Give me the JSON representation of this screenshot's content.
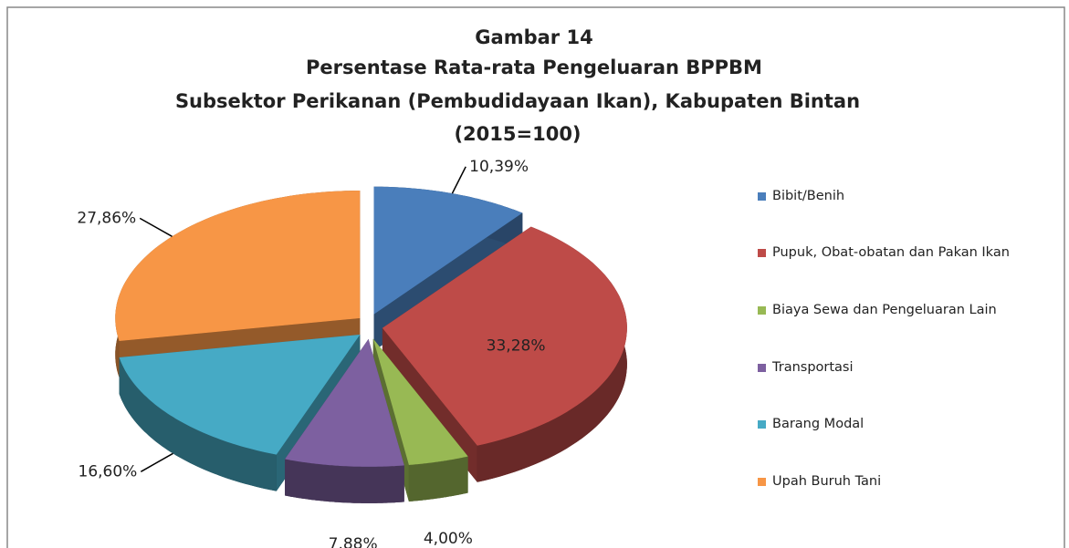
{
  "chart_data": {
    "type": "pie",
    "title": [
      "Gambar 14",
      "Persentase Rata-rata Pengeluaran BPPBM",
      "Subsektor Perikanan (Pembudidayaan Ikan), Kabupaten Bintan",
      "(2015=100)"
    ],
    "categories": [
      "Bibit/Benih",
      "Pupuk, Obat-obatan dan Pakan Ikan",
      "Biaya Sewa dan Pengeluaran Lain",
      "Transportasi",
      "Barang Modal",
      "Upah Buruh Tani"
    ],
    "values": [
      10.39,
      33.28,
      4.0,
      7.88,
      16.6,
      27.86
    ],
    "value_labels": [
      "10,39%",
      "33,28%",
      "4,00%",
      "7,88%",
      "16,60%",
      "27,86%"
    ],
    "colors": [
      "#4a7ebb",
      "#be4b48",
      "#98b954",
      "#7d60a0",
      "#46aac5",
      "#f79646"
    ],
    "legend": "right"
  }
}
